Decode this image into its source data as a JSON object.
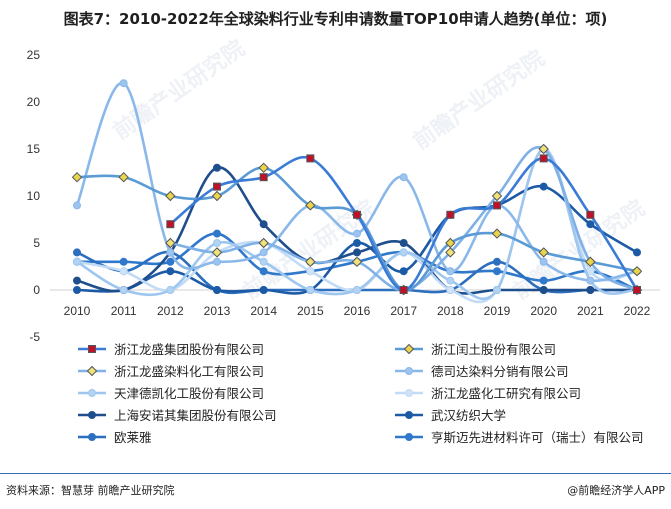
{
  "title": "图表7：2010-2022年全球染料行业专利申请数量TOP10申请人趋势(单位：项)",
  "footer": {
    "source": "资料来源：智慧芽 前瞻产业研究院",
    "brand": "@前瞻经济学人APP"
  },
  "watermark": "前瞻产业研究院",
  "chart_data": {
    "type": "line",
    "title": "图表7：2010-2022年全球染料行业专利申请数量TOP10申请人趋势(单位：项)",
    "x": [
      "2010",
      "2011",
      "2012",
      "2013",
      "2014",
      "2015",
      "2016",
      "2017",
      "2018",
      "2019",
      "2020",
      "2021",
      "2022"
    ],
    "ylim": [
      -5,
      25
    ],
    "yticks": [
      -5,
      0,
      5,
      10,
      15,
      20,
      25
    ],
    "grid": false,
    "legend_position": "bottom",
    "series": [
      {
        "name": "浙江龙盛集团股份有限公司",
        "color": "#3a7bd5",
        "marker": "square",
        "marker_color": "#c0112b",
        "values": [
          null,
          null,
          7,
          11,
          12,
          14,
          8,
          0,
          8,
          9,
          14,
          8,
          0
        ]
      },
      {
        "name": "浙江闰土股份有限公司",
        "color": "#5b9bd5",
        "marker": "diamond",
        "marker_color": "#e8d44d",
        "values": [
          12,
          12,
          10,
          10,
          13,
          9,
          8,
          0,
          5,
          6,
          4,
          3,
          2
        ]
      },
      {
        "name": "浙江龙盛染料化工有限公司",
        "color": "#7fb0e6",
        "marker": "diamond",
        "marker_color": "#f0e27a",
        "values": [
          null,
          null,
          5,
          4,
          5,
          3,
          3,
          0,
          4,
          10,
          15,
          3,
          0
        ]
      },
      {
        "name": "德司达染料分销有限公司",
        "color": "#8ab8ea",
        "marker": "circle",
        "marker_color": "#9cc4ee",
        "values": [
          9,
          22,
          4,
          3,
          4,
          9,
          6,
          12,
          2,
          9,
          3,
          1,
          2
        ]
      },
      {
        "name": "天津德凯化工股份有限公司",
        "color": "#9ec6ef",
        "marker": "circle",
        "marker_color": "#b3d3f3",
        "values": [
          3,
          0,
          0,
          5,
          3,
          0,
          0,
          4,
          1,
          0,
          15,
          1,
          0
        ]
      },
      {
        "name": "浙江龙盛化工研究有限公司",
        "color": "#c2dbf6",
        "marker": "circle",
        "marker_color": "#cfe2f8",
        "values": [
          3,
          2,
          0,
          4,
          5,
          2,
          0,
          4,
          0,
          0,
          15,
          2,
          2
        ]
      },
      {
        "name": "上海安诺其集团股份有限公司",
        "color": "#1f4e8c",
        "marker": "circle",
        "marker_color": "#1f4e8c",
        "values": [
          1,
          0,
          4,
          13,
          7,
          3,
          4,
          5,
          0,
          0,
          0,
          0,
          0
        ]
      },
      {
        "name": "武汉纺织大学",
        "color": "#1c5aa6",
        "marker": "circle",
        "marker_color": "#1c5aa6",
        "values": [
          0,
          0,
          2,
          0,
          0,
          0,
          5,
          2,
          8,
          9,
          11,
          7,
          4
        ]
      },
      {
        "name": "欧莱雅",
        "color": "#2c6fbe",
        "marker": "circle",
        "marker_color": "#2c6fbe",
        "values": [
          4,
          2,
          4,
          0,
          0,
          0,
          0,
          0,
          0,
          3,
          0,
          0,
          0
        ]
      },
      {
        "name": "亨斯迈先进材料许可（瑞士）有限公司",
        "color": "#2f78cc",
        "marker": "circle",
        "marker_color": "#2f78cc",
        "values": [
          3,
          3,
          3,
          6,
          2,
          2,
          3,
          4,
          2,
          2,
          1,
          2,
          0
        ]
      }
    ]
  }
}
